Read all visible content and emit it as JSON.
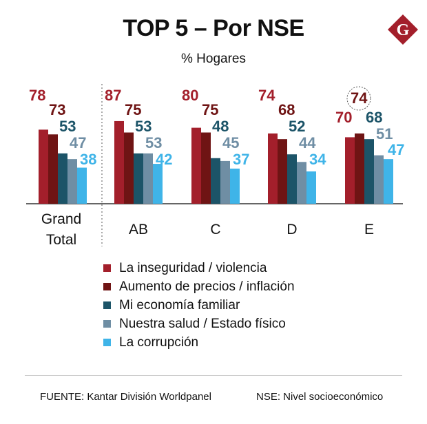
{
  "header": {
    "title": "TOP 5 – Por NSE",
    "subtitle": "% Hogares",
    "logo_letter": "G"
  },
  "colors": {
    "series": [
      "#a31f2b",
      "#6f1414",
      "#1c5468",
      "#6f8ea4",
      "#3fb4e8"
    ],
    "logo": "#a31f2b",
    "baseline": "#333333"
  },
  "chart_data": {
    "type": "bar",
    "title": "TOP 5 – Por NSE",
    "ylabel": "% Hogares",
    "ylim": [
      0,
      100
    ],
    "categories": [
      "Grand Total",
      "AB",
      "C",
      "D",
      "E"
    ],
    "category_lines": [
      [
        "Grand",
        "Total"
      ],
      [
        "AB"
      ],
      [
        "C"
      ],
      [
        "D"
      ],
      [
        "E"
      ]
    ],
    "series": [
      {
        "name": "La inseguridad / violencia",
        "values": [
          78,
          87,
          80,
          74,
          70
        ]
      },
      {
        "name": "Aumento de precios / inflación",
        "values": [
          73,
          75,
          75,
          68,
          74
        ]
      },
      {
        "name": "Mi economía familiar",
        "values": [
          53,
          53,
          48,
          52,
          68
        ]
      },
      {
        "name": "Nuestra salud / Estado físico",
        "values": [
          47,
          53,
          45,
          44,
          51
        ]
      },
      {
        "name": "La corrupción",
        "values": [
          38,
          42,
          37,
          34,
          47
        ]
      }
    ],
    "annotations": [
      {
        "category": "E",
        "series": "Aumento de precios / inflación",
        "style": "dashed-circle"
      }
    ],
    "legend_position": "bottom"
  },
  "footer": {
    "source": "FUENTE: Kantar División Worldpanel",
    "note": "NSE: Nivel socioeconómico"
  }
}
